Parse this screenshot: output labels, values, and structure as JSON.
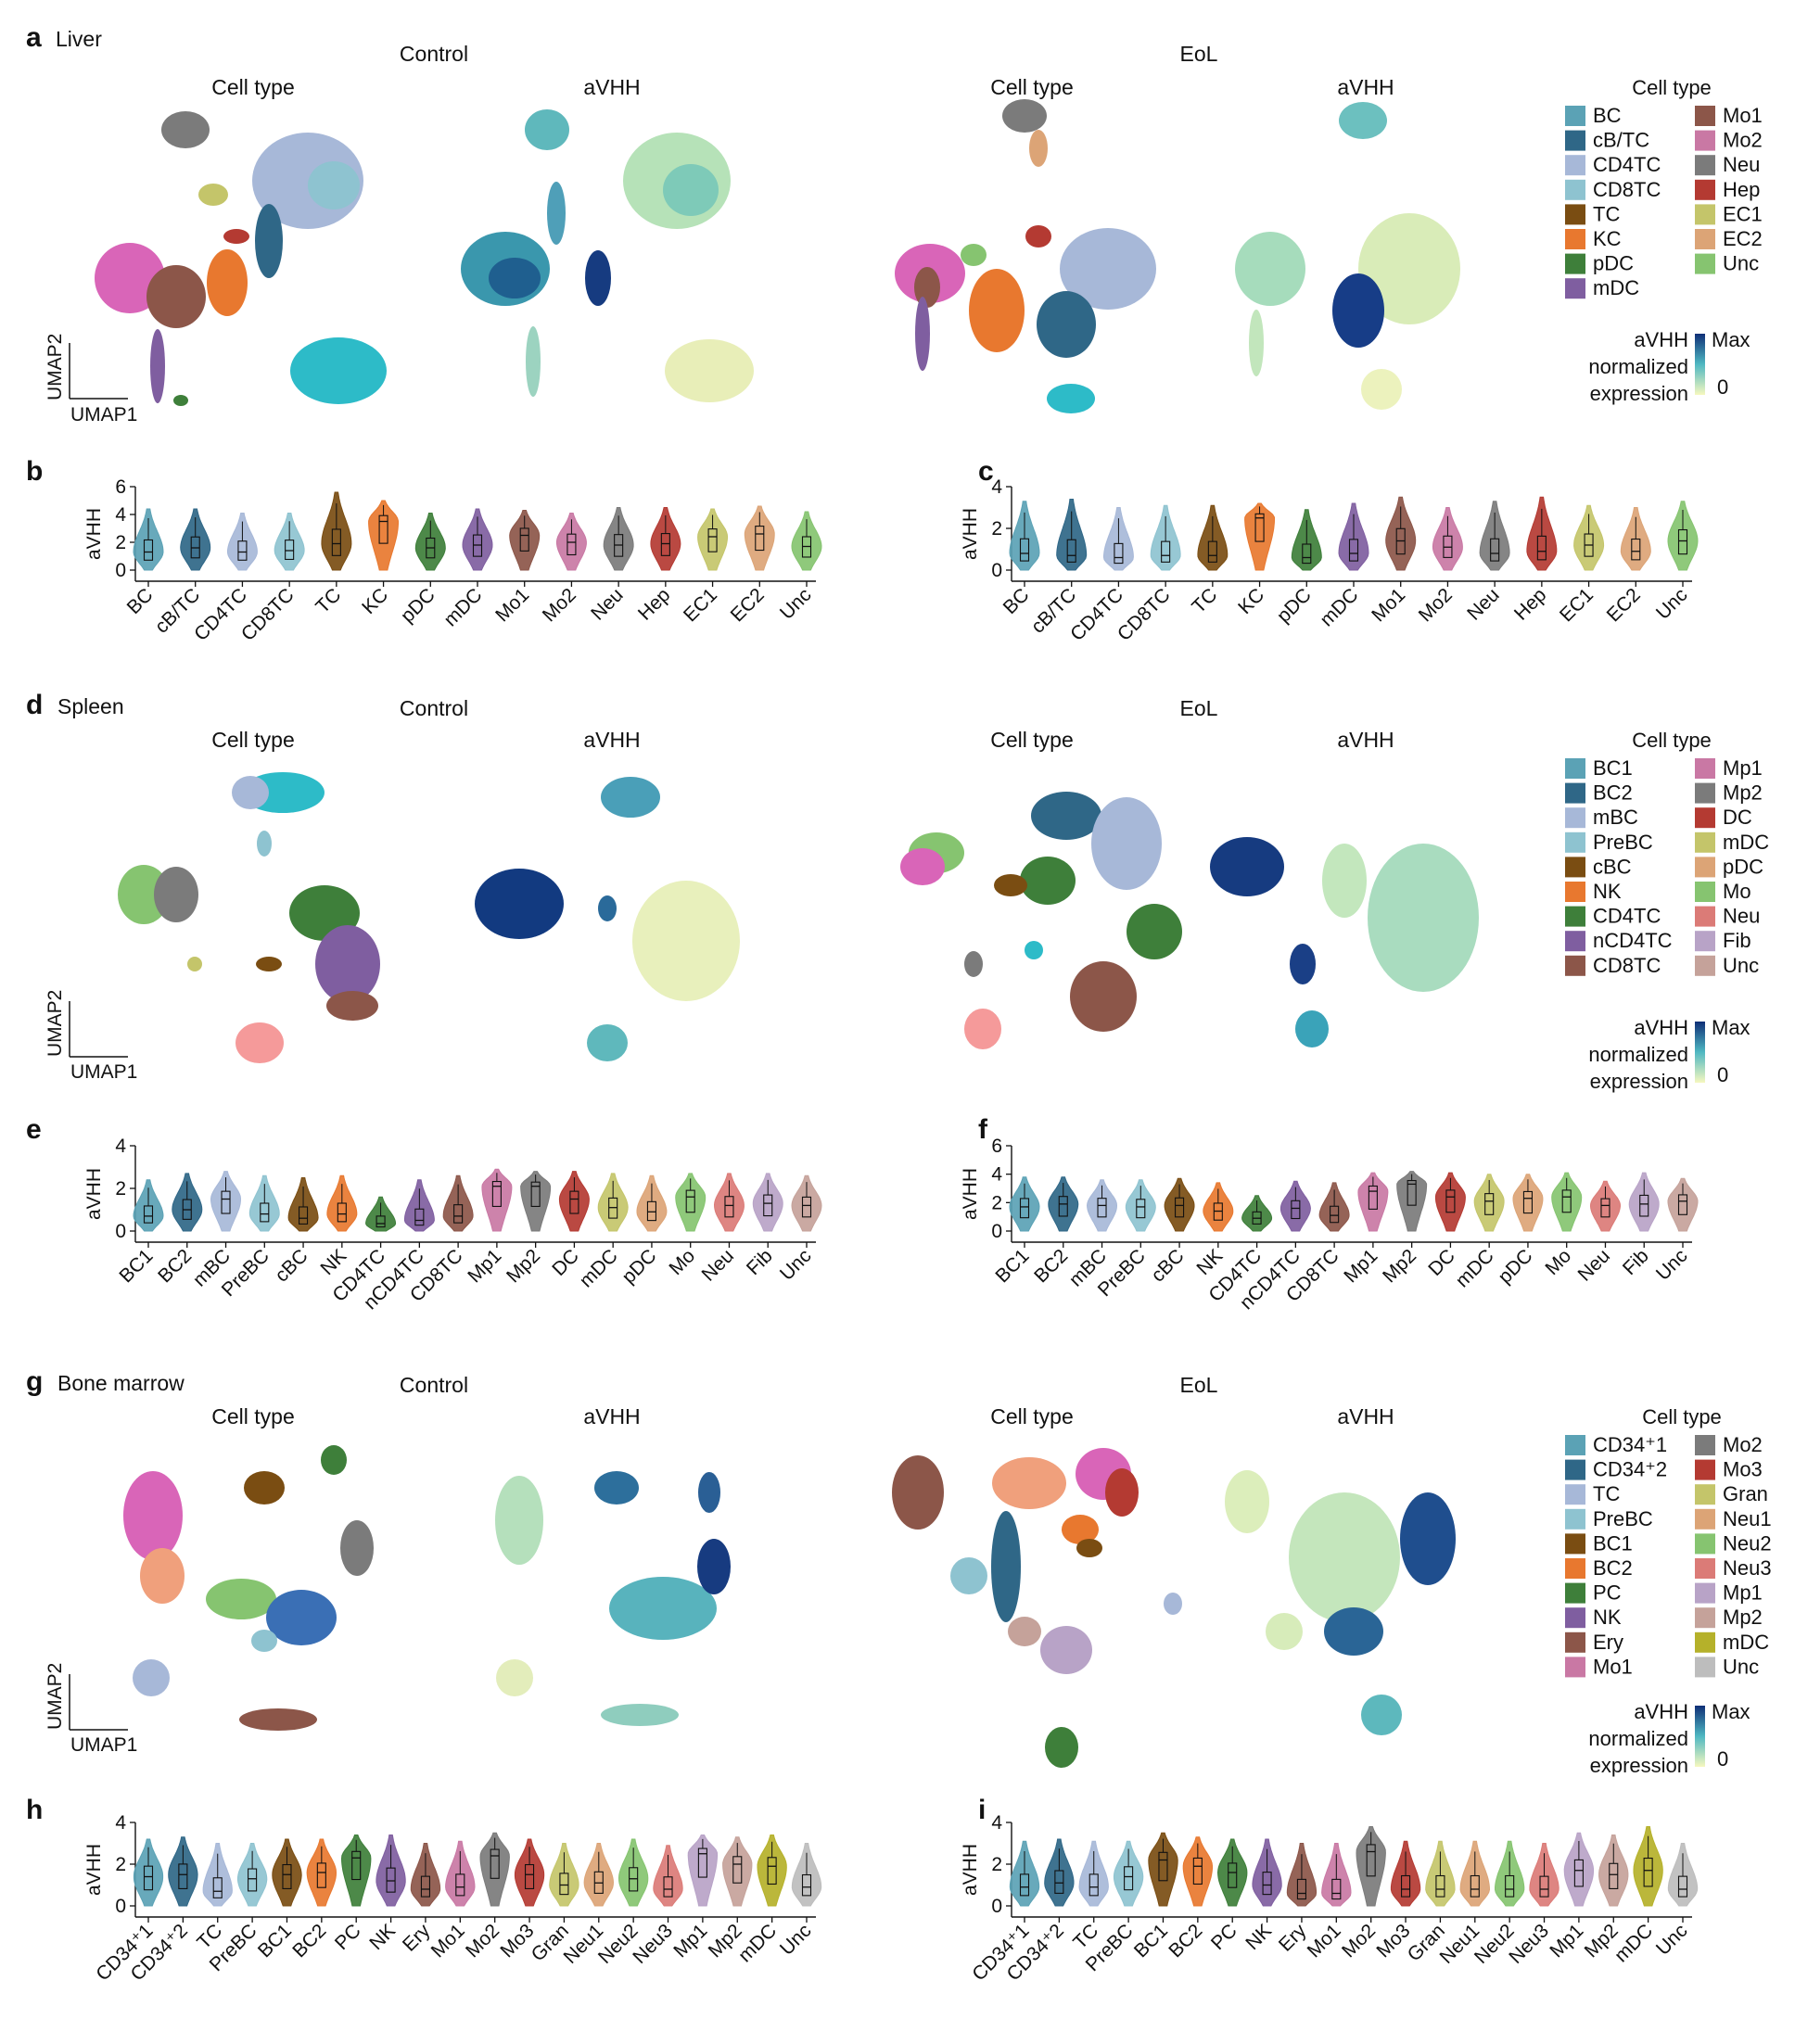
{
  "panels": {
    "a": "a",
    "b": "b",
    "c": "c",
    "d": "d",
    "e": "e",
    "f": "f",
    "g": "g",
    "h": "h",
    "i": "i"
  },
  "tissues": {
    "liver": "Liver",
    "spleen": "Spleen",
    "bone_marrow": "Bone marrow"
  },
  "labels": {
    "control": "Control",
    "eol": "EoL",
    "cell_type": "Cell type",
    "avhh": "aVHH",
    "umap1": "UMAP1",
    "umap2": "UMAP2",
    "cb_title": "aVHH",
    "cb_line1": "normalized",
    "cb_line2": "expression",
    "cb_max": "Max",
    "cb_min": "0",
    "ylabel": "aVHH"
  },
  "colors": {
    "low": "#f6f8bf",
    "mid": "#4fb8c2",
    "high": "#0f2f77"
  },
  "legends": {
    "liver": {
      "col1": [
        [
          "BC",
          "#5ba2b5"
        ],
        [
          "cB/TC",
          "#2f6787"
        ],
        [
          "CD4TC",
          "#a7b8d8"
        ],
        [
          "CD8TC",
          "#8ec3d0"
        ],
        [
          "TC",
          "#7a4d12"
        ],
        [
          "KC",
          "#e8782f"
        ],
        [
          "pDC",
          "#3e7f3a"
        ],
        [
          "mDC",
          "#7f5ea0"
        ]
      ],
      "col2": [
        [
          "Mo1",
          "#8c5649"
        ],
        [
          "Mo2",
          "#c978a4"
        ],
        [
          "Neu",
          "#7b7b7b"
        ],
        [
          "Hep",
          "#b43a32"
        ],
        [
          "EC1",
          "#c4c56a"
        ],
        [
          "EC2",
          "#dca476"
        ],
        [
          "Unc",
          "#86c470"
        ]
      ]
    },
    "spleen": {
      "col1": [
        [
          "BC1",
          "#5ba2b5"
        ],
        [
          "BC2",
          "#2f6787"
        ],
        [
          "mBC",
          "#a7b8d8"
        ],
        [
          "PreBC",
          "#8ec3d0"
        ],
        [
          "cBC",
          "#7a4d12"
        ],
        [
          "NK",
          "#e8782f"
        ],
        [
          "CD4TC",
          "#3e7f3a"
        ],
        [
          "nCD4TC",
          "#7f5ea0"
        ],
        [
          "CD8TC",
          "#8c5649"
        ]
      ],
      "col2": [
        [
          "Mp1",
          "#c978a4"
        ],
        [
          "Mp2",
          "#7b7b7b"
        ],
        [
          "DC",
          "#b43a32"
        ],
        [
          "mDC",
          "#c4c56a"
        ],
        [
          "pDC",
          "#dca476"
        ],
        [
          "Mo",
          "#86c470"
        ],
        [
          "Neu",
          "#db7b77"
        ],
        [
          "Fib",
          "#b8a3c7"
        ],
        [
          "Unc",
          "#c5a29a"
        ]
      ]
    },
    "bone_marrow": {
      "col1": [
        [
          "CD34⁺1",
          "#5ba2b5"
        ],
        [
          "CD34⁺2",
          "#2f6787"
        ],
        [
          "TC",
          "#a7b8d8"
        ],
        [
          "PreBC",
          "#8ec3d0"
        ],
        [
          "BC1",
          "#7a4d12"
        ],
        [
          "BC2",
          "#e8782f"
        ],
        [
          "PC",
          "#3e7f3a"
        ],
        [
          "NK",
          "#7f5ea0"
        ],
        [
          "Ery",
          "#8c5649"
        ],
        [
          "Mo1",
          "#c978a4"
        ]
      ],
      "col2": [
        [
          "Mo2",
          "#7b7b7b"
        ],
        [
          "Mo3",
          "#b43a32"
        ],
        [
          "Gran",
          "#c4c56a"
        ],
        [
          "Neu1",
          "#dca476"
        ],
        [
          "Neu2",
          "#86c470"
        ],
        [
          "Neu3",
          "#db7b77"
        ],
        [
          "Mp1",
          "#b8a3c7"
        ],
        [
          "Mp2",
          "#c5a29a"
        ],
        [
          "mDC",
          "#b5b12a"
        ],
        [
          "Unc",
          "#bdbdbd"
        ]
      ]
    }
  },
  "chart_data": [
    {
      "id": "b",
      "type": "violin",
      "ylabel": "aVHH",
      "ylim": [
        0,
        6
      ],
      "yticks": [
        0,
        2,
        4,
        6
      ],
      "categories": [
        "BC",
        "cB/TC",
        "CD4TC",
        "CD8TC",
        "TC",
        "KC",
        "pDC",
        "mDC",
        "Mo1",
        "Mo2",
        "Neu",
        "Hep",
        "EC1",
        "EC2",
        "Unc"
      ],
      "colors": [
        "#5ba2b5",
        "#2f6787",
        "#a7b8d8",
        "#8ec3d0",
        "#7a4d12",
        "#e8782f",
        "#3e7f3a",
        "#7f5ea0",
        "#8c5649",
        "#c978a4",
        "#7b7b7b",
        "#b43a32",
        "#c4c56a",
        "#dca476",
        "#86c470"
      ],
      "medians": [
        1.3,
        1.6,
        1.3,
        1.4,
        1.9,
        3.5,
        1.6,
        1.8,
        2.5,
        2.0,
        1.8,
        1.9,
        2.4,
        2.6,
        1.7
      ],
      "max": [
        4.4,
        4.4,
        4.1,
        4.1,
        5.6,
        5.0,
        4.1,
        4.4,
        4.3,
        4.1,
        4.5,
        4.5,
        4.4,
        4.6,
        4.2
      ]
    },
    {
      "id": "c",
      "type": "violin",
      "ylabel": "aVHH",
      "ylim": [
        0,
        4
      ],
      "yticks": [
        0,
        2,
        4
      ],
      "categories": [
        "BC",
        "cB/TC",
        "CD4TC",
        "CD8TC",
        "TC",
        "KC",
        "pDC",
        "mDC",
        "Mo1",
        "Mo2",
        "Neu",
        "Hep",
        "EC1",
        "EC2",
        "Unc"
      ],
      "colors": [
        "#5ba2b5",
        "#2f6787",
        "#a7b8d8",
        "#8ec3d0",
        "#7a4d12",
        "#e8782f",
        "#3e7f3a",
        "#7f5ea0",
        "#8c5649",
        "#c978a4",
        "#7b7b7b",
        "#b43a32",
        "#c4c56a",
        "#dca476",
        "#86c470"
      ],
      "medians": [
        0.8,
        0.7,
        0.6,
        0.7,
        0.7,
        2.5,
        0.6,
        0.8,
        1.4,
        1.1,
        0.8,
        0.9,
        1.2,
        0.9,
        1.4
      ],
      "max": [
        3.3,
        3.4,
        3.0,
        3.1,
        3.1,
        3.2,
        2.9,
        3.2,
        3.5,
        3.0,
        3.3,
        3.5,
        3.1,
        3.0,
        3.3
      ]
    },
    {
      "id": "e",
      "type": "violin",
      "ylabel": "aVHH",
      "ylim": [
        0,
        4
      ],
      "yticks": [
        0,
        2,
        4
      ],
      "categories": [
        "BC1",
        "BC2",
        "mBC",
        "PreBC",
        "cBC",
        "NK",
        "CD4TC",
        "nCD4TC",
        "CD8TC",
        "Mp1",
        "Mp2",
        "DC",
        "mDC",
        "pDC",
        "Mo",
        "Neu",
        "Fib",
        "Unc"
      ],
      "colors": [
        "#5ba2b5",
        "#2f6787",
        "#a7b8d8",
        "#8ec3d0",
        "#7a4d12",
        "#e8782f",
        "#3e7f3a",
        "#7f5ea0",
        "#8c5649",
        "#c978a4",
        "#7b7b7b",
        "#b43a32",
        "#c4c56a",
        "#dca476",
        "#86c470",
        "#db7b77",
        "#b8a3c7",
        "#c5a29a"
      ],
      "medians": [
        0.7,
        1.0,
        1.5,
        0.8,
        0.6,
        0.8,
        0.35,
        0.5,
        0.7,
        2.1,
        2.1,
        1.5,
        1.1,
        0.9,
        1.6,
        1.2,
        1.3,
        1.2
      ],
      "max": [
        2.4,
        2.7,
        2.8,
        2.6,
        2.5,
        2.6,
        1.6,
        2.4,
        2.6,
        2.9,
        2.8,
        2.8,
        2.7,
        2.6,
        2.7,
        2.7,
        2.7,
        2.6
      ]
    },
    {
      "id": "f",
      "type": "violin",
      "ylabel": "aVHH",
      "ylim": [
        0,
        6
      ],
      "yticks": [
        0,
        2,
        4,
        6
      ],
      "categories": [
        "BC1",
        "BC2",
        "mBC",
        "PreBC",
        "cBC",
        "NK",
        "CD4TC",
        "nCD4TC",
        "CD8TC",
        "Mp1",
        "Mp2",
        "DC",
        "mDC",
        "pDC",
        "Mo",
        "Neu",
        "Fib",
        "Unc"
      ],
      "colors": [
        "#5ba2b5",
        "#2f6787",
        "#a7b8d8",
        "#8ec3d0",
        "#7a4d12",
        "#e8782f",
        "#3e7f3a",
        "#7f5ea0",
        "#8c5649",
        "#c978a4",
        "#7b7b7b",
        "#b43a32",
        "#c4c56a",
        "#dca476",
        "#86c470",
        "#db7b77",
        "#b8a3c7",
        "#c5a29a"
      ],
      "medians": [
        1.7,
        1.9,
        1.8,
        1.7,
        1.8,
        1.4,
        0.9,
        1.6,
        1.1,
        2.8,
        3.3,
        2.4,
        2.1,
        2.3,
        2.4,
        1.8,
        1.9,
        2.1
      ],
      "max": [
        3.8,
        3.8,
        3.6,
        3.6,
        3.7,
        3.4,
        2.5,
        3.5,
        3.4,
        4.1,
        4.2,
        4.1,
        4.0,
        4.0,
        4.1,
        3.5,
        4.1,
        3.7
      ]
    },
    {
      "id": "h",
      "type": "violin",
      "ylabel": "aVHH",
      "ylim": [
        0,
        4
      ],
      "yticks": [
        0,
        2,
        4
      ],
      "categories": [
        "CD34⁺1",
        "CD34⁺2",
        "TC",
        "PreBC",
        "BC1",
        "BC2",
        "PC",
        "NK",
        "Ery",
        "Mo1",
        "Mo2",
        "Mo3",
        "Gran",
        "Neu1",
        "Neu2",
        "Neu3",
        "Mp1",
        "Mp2",
        "mDC",
        "Unc"
      ],
      "colors": [
        "#5ba2b5",
        "#2f6787",
        "#a7b8d8",
        "#8ec3d0",
        "#7a4d12",
        "#e8782f",
        "#3e7f3a",
        "#7f5ea0",
        "#8c5649",
        "#c978a4",
        "#7b7b7b",
        "#b43a32",
        "#c4c56a",
        "#dca476",
        "#86c470",
        "#db7b77",
        "#b8a3c7",
        "#c5a29a",
        "#b5b12a",
        "#bdbdbd"
      ],
      "medians": [
        1.4,
        1.5,
        0.7,
        1.3,
        1.5,
        1.6,
        2.3,
        1.2,
        0.8,
        0.9,
        2.4,
        1.5,
        1.0,
        1.1,
        1.3,
        0.8,
        2.5,
        2.0,
        1.9,
        0.9
      ],
      "max": [
        3.2,
        3.3,
        3.0,
        3.0,
        3.2,
        3.2,
        3.4,
        3.4,
        3.0,
        3.1,
        3.5,
        3.2,
        3.0,
        3.0,
        3.2,
        2.9,
        3.4,
        3.3,
        3.4,
        3.0
      ]
    },
    {
      "id": "i",
      "type": "violin",
      "ylabel": "aVHH",
      "ylim": [
        0,
        4
      ],
      "yticks": [
        0,
        2,
        4
      ],
      "categories": [
        "CD34⁺1",
        "CD34⁺2",
        "TC",
        "PreBC",
        "BC1",
        "BC2",
        "PC",
        "NK",
        "Ery",
        "Mo1",
        "Mo2",
        "Mo3",
        "Gran",
        "Neu1",
        "Neu2",
        "Neu3",
        "Mp1",
        "Mp2",
        "mDC",
        "Unc"
      ],
      "colors": [
        "#5ba2b5",
        "#2f6787",
        "#a7b8d8",
        "#8ec3d0",
        "#7a4d12",
        "#e8782f",
        "#3e7f3a",
        "#7f5ea0",
        "#8c5649",
        "#c978a4",
        "#7b7b7b",
        "#b43a32",
        "#c4c56a",
        "#dca476",
        "#86c470",
        "#db7b77",
        "#b8a3c7",
        "#c5a29a",
        "#b5b12a",
        "#bdbdbd"
      ],
      "medians": [
        0.9,
        1.1,
        0.9,
        1.4,
        2.2,
        1.9,
        1.6,
        1.0,
        0.6,
        0.6,
        2.6,
        0.8,
        0.8,
        0.8,
        0.8,
        0.8,
        1.7,
        1.5,
        1.7,
        0.8
      ],
      "max": [
        3.1,
        3.2,
        3.1,
        3.1,
        3.5,
        3.3,
        3.2,
        3.2,
        3.0,
        3.0,
        3.8,
        3.1,
        3.1,
        3.1,
        3.1,
        3.0,
        3.5,
        3.4,
        3.8,
        3.0
      ]
    }
  ]
}
